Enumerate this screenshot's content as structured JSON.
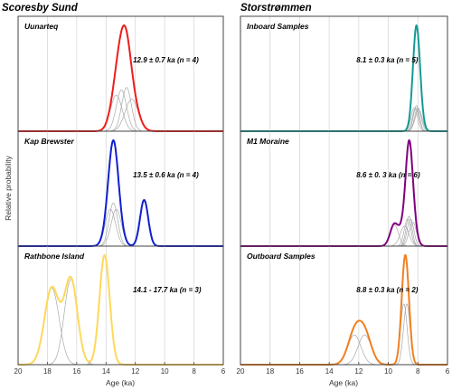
{
  "columns": [
    {
      "title": "Scoresby Sund"
    },
    {
      "title": "Storstrømmen"
    }
  ],
  "ylabel": "Relative probability",
  "xlabel": "Age (ka)",
  "colors": {
    "red": "#ee1c1c",
    "blue": "#1020d0",
    "yellow": "#ffd85a",
    "teal": "#139b96",
    "purple": "#800080",
    "orange": "#f08020",
    "component": "#a9a9a9",
    "grid": "#d8d8d8",
    "frame": "#444444"
  },
  "chart_data": [
    {
      "type": "line",
      "label": "Uunarteq",
      "stat": "12.9 ± 0.7 ka (n = 4)",
      "color": "#ee1c1c",
      "xlim": [
        20,
        6
      ],
      "xticks": [
        20,
        18,
        16,
        14,
        12,
        10,
        8,
        6
      ],
      "components": [
        {
          "mu": 13.3,
          "sigma": 0.4
        },
        {
          "mu": 12.95,
          "sigma": 0.35
        },
        {
          "mu": 12.6,
          "sigma": 0.33
        },
        {
          "mu": 12.25,
          "sigma": 0.45
        }
      ]
    },
    {
      "type": "line",
      "label": "Kap Brewster",
      "stat": "13.5 ± 0.6 ka (n = 4)",
      "color": "#1020d0",
      "xlim": [
        20,
        6
      ],
      "xticks": [
        20,
        18,
        16,
        14,
        12,
        10,
        8,
        6
      ],
      "components": [
        {
          "mu": 13.7,
          "sigma": 0.35
        },
        {
          "mu": 13.5,
          "sigma": 0.3
        },
        {
          "mu": 13.3,
          "sigma": 0.35
        },
        {
          "mu": 11.4,
          "sigma": 0.28
        }
      ]
    },
    {
      "type": "line",
      "label": "Rathbone Island",
      "stat": "14.1 - 17.7 ka (n = 3)",
      "color": "#ffd85a",
      "xlim": [
        20,
        6
      ],
      "xticks": [
        20,
        18,
        16,
        14,
        12,
        10,
        8,
        6
      ],
      "components": [
        {
          "mu": 17.7,
          "sigma": 0.5
        },
        {
          "mu": 16.4,
          "sigma": 0.45
        },
        {
          "mu": 14.1,
          "sigma": 0.35
        }
      ]
    },
    {
      "type": "line",
      "label": "Inboard Samples",
      "stat": "8.1 ± 0.3 ka (n = 5)",
      "color": "#139b96",
      "xlim": [
        20,
        6
      ],
      "xticks": [
        20,
        18,
        16,
        14,
        12,
        10,
        8,
        6
      ],
      "components": [
        {
          "mu": 8.25,
          "sigma": 0.22
        },
        {
          "mu": 8.15,
          "sigma": 0.22
        },
        {
          "mu": 8.1,
          "sigma": 0.2
        },
        {
          "mu": 8.0,
          "sigma": 0.22
        },
        {
          "mu": 7.95,
          "sigma": 0.24
        }
      ]
    },
    {
      "type": "line",
      "label": "M1 Moraine",
      "stat": "8.6 ± 0. 3 ka (n = 6)",
      "color": "#800080",
      "xlim": [
        20,
        6
      ],
      "xticks": [
        20,
        18,
        16,
        14,
        12,
        10,
        8,
        6
      ],
      "components": [
        {
          "mu": 9.6,
          "sigma": 0.28
        },
        {
          "mu": 8.9,
          "sigma": 0.3
        },
        {
          "mu": 8.7,
          "sigma": 0.22
        },
        {
          "mu": 8.6,
          "sigma": 0.2
        },
        {
          "mu": 8.5,
          "sigma": 0.22
        },
        {
          "mu": 8.35,
          "sigma": 0.25
        }
      ]
    },
    {
      "type": "line",
      "label": "Outboard Samples",
      "stat": "8.8 ± 0.3 ka (n = 2)",
      "color": "#f08020",
      "xlim": [
        20,
        6
      ],
      "xticks": [
        20,
        18,
        16,
        14,
        12,
        10,
        8,
        6
      ],
      "components": [
        {
          "mu": 12.3,
          "sigma": 0.45
        },
        {
          "mu": 11.6,
          "sigma": 0.45
        },
        {
          "mu": 8.95,
          "sigma": 0.22
        },
        {
          "mu": 8.75,
          "sigma": 0.22
        }
      ]
    }
  ]
}
